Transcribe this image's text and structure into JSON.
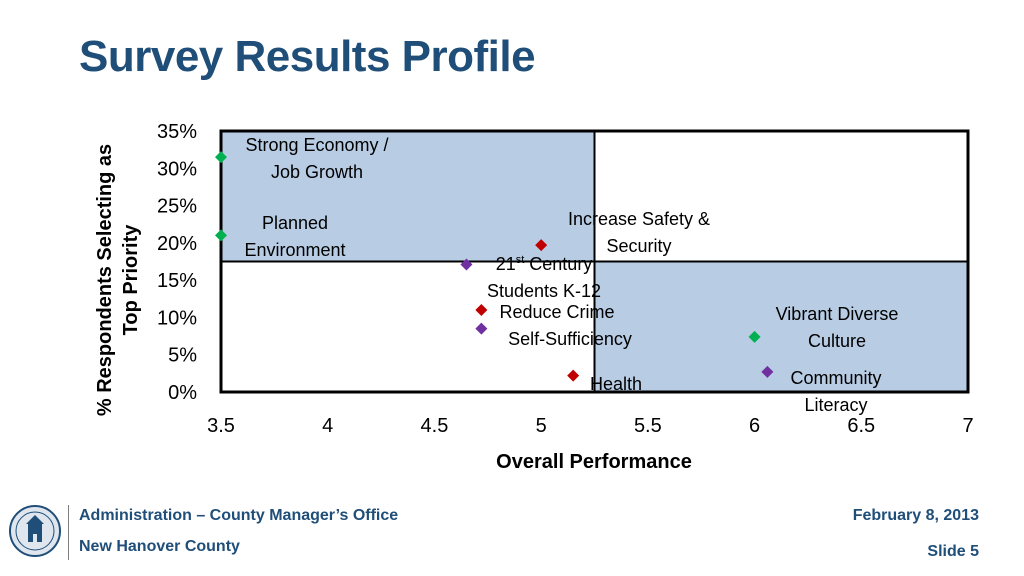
{
  "slide": {
    "title": "Survey Results Profile",
    "footer_office": "Administration – County Manager’s Office",
    "footer_county": "New Hanover County",
    "footer_date": "February 8, 2013",
    "footer_slide": "Slide 5"
  },
  "colors": {
    "title": "#1F4E79",
    "quadrant_fill": "#B8CCE4",
    "green": "#00B050",
    "red": "#C00000",
    "purple": "#7030A0"
  },
  "chart_data": {
    "type": "scatter",
    "title": "",
    "xlabel": "Overall Performance",
    "ylabel_line1": "% Respondents Selecting as",
    "ylabel_line2": "Top Priority",
    "xlim": [
      3.5,
      7
    ],
    "ylim": [
      0,
      0.35
    ],
    "xticks": [
      "3.5",
      "4",
      "4.5",
      "5",
      "5.5",
      "6",
      "6.5",
      "7"
    ],
    "yticks": [
      "0%",
      "5%",
      "10%",
      "15%",
      "20%",
      "25%",
      "30%",
      "35%"
    ],
    "quadrant_divider": {
      "x": 5.25,
      "y": 0.175
    },
    "shaded_quadrants": [
      "top-left",
      "bottom-right"
    ],
    "points": [
      {
        "x": 3.5,
        "y": 0.315,
        "color": "green",
        "label_lines": [
          "Strong Economy /",
          "Job Growth"
        ]
      },
      {
        "x": 3.5,
        "y": 0.21,
        "color": "green",
        "label_lines": [
          "Planned",
          "Environment"
        ]
      },
      {
        "x": 5.0,
        "y": 0.197,
        "color": "red",
        "label_lines": [
          "Increase Safety &",
          "Security"
        ]
      },
      {
        "x": 4.65,
        "y": 0.171,
        "color": "purple",
        "label_lines": [
          "21st Century",
          "Students K-12"
        ]
      },
      {
        "x": 4.72,
        "y": 0.11,
        "color": "red",
        "label_lines": [
          "Reduce Crime"
        ]
      },
      {
        "x": 4.72,
        "y": 0.085,
        "color": "purple",
        "label_lines": [
          "Self-Sufficiency"
        ]
      },
      {
        "x": 6.0,
        "y": 0.074,
        "color": "green",
        "label_lines": [
          "Vibrant Diverse",
          "Culture"
        ]
      },
      {
        "x": 5.15,
        "y": 0.022,
        "color": "red",
        "label_lines": [
          "Health"
        ]
      },
      {
        "x": 6.06,
        "y": 0.027,
        "color": "purple",
        "label_lines": [
          "Community",
          "Literacy"
        ]
      }
    ]
  }
}
